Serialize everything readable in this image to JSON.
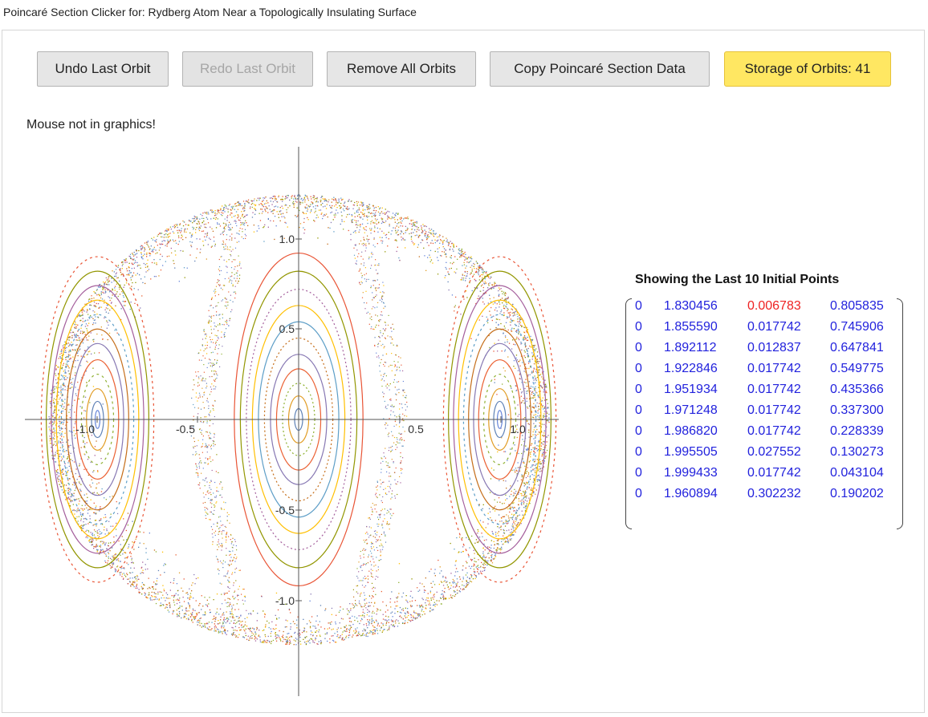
{
  "window": {
    "title": "Poincaré Section Clicker for: Rydberg Atom Near a Topologically Insulating Surface"
  },
  "toolbar": {
    "undo_label": "Undo Last Orbit",
    "redo_label": "Redo Last Orbit",
    "remove_label": "Remove All Orbits",
    "copy_label": "Copy Poincaré Section Data",
    "storage_label": "Storage of Orbits: 41"
  },
  "status": {
    "mouse_text": "Mouse not in graphics!"
  },
  "plot": {
    "x_ticks": [
      "-1.0",
      "-0.5",
      "0.5",
      "1.0"
    ],
    "y_ticks": [
      "1.0",
      "0.5",
      "-0.5",
      "-1.0"
    ],
    "colors": [
      "#5e81b5",
      "#e19c24",
      "#8fb032",
      "#eb6235",
      "#8778b3",
      "#c56e1a",
      "#5d9ec7",
      "#ffbf00",
      "#a5609d",
      "#929600",
      "#e95536",
      "#6685d9"
    ]
  },
  "initial_points": {
    "title": "Showing the Last 10 Initial Points",
    "rows": [
      [
        "0",
        "1.830456",
        "0.006783",
        "0.805835"
      ],
      [
        "0",
        "1.855590",
        "0.017742",
        "0.745906"
      ],
      [
        "0",
        "1.892112",
        "0.012837",
        "0.647841"
      ],
      [
        "0",
        "1.922846",
        "0.017742",
        "0.549775"
      ],
      [
        "0",
        "1.951934",
        "0.017742",
        "0.435366"
      ],
      [
        "0",
        "1.971248",
        "0.017742",
        "0.337300"
      ],
      [
        "0",
        "1.986820",
        "0.017742",
        "0.228339"
      ],
      [
        "0",
        "1.995505",
        "0.027552",
        "0.130273"
      ],
      [
        "0",
        "1.999433",
        "0.017742",
        "0.043104"
      ],
      [
        "0",
        "1.960894",
        "0.302232",
        "0.190202"
      ]
    ],
    "highlight_color": "#ee2222",
    "value_color": "#2222dd"
  }
}
